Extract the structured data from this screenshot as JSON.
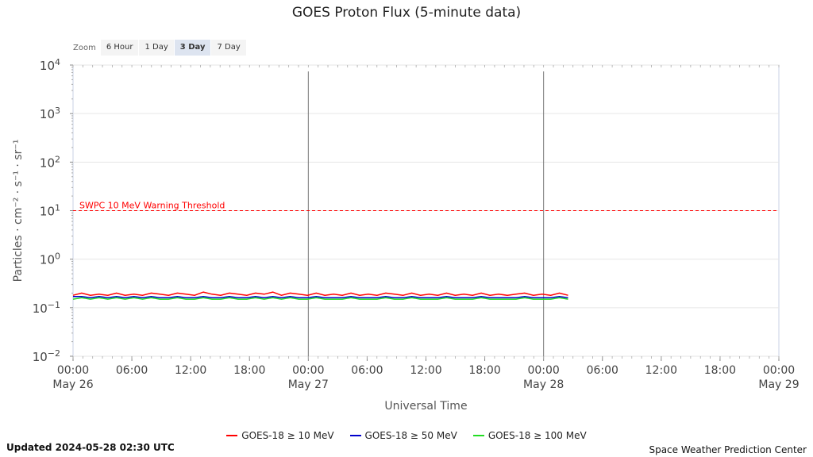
{
  "title": "GOES Proton Flux (5-minute data)",
  "zoom": {
    "label": "Zoom",
    "options": [
      "6 Hour",
      "1 Day",
      "3 Day",
      "7 Day"
    ],
    "active": "3 Day"
  },
  "footer": {
    "updated": "Updated 2024-05-28 02:30 UTC",
    "credit": "Space Weather Prediction Center"
  },
  "chart_data": {
    "type": "line",
    "title": "GOES Proton Flux (5-minute data)",
    "xlabel": "Universal Time",
    "ylabel": "Particles · cm⁻² · s⁻¹ · sr⁻¹",
    "y_scale": "log",
    "ylim": [
      0.01,
      10000
    ],
    "xlim_hours": [
      0,
      72
    ],
    "x_ticks": [
      {
        "time": "00:00",
        "date": "May 26"
      },
      {
        "time": "06:00",
        "date": ""
      },
      {
        "time": "12:00",
        "date": ""
      },
      {
        "time": "18:00",
        "date": ""
      },
      {
        "time": "00:00",
        "date": "May 27"
      },
      {
        "time": "06:00",
        "date": ""
      },
      {
        "time": "12:00",
        "date": ""
      },
      {
        "time": "18:00",
        "date": ""
      },
      {
        "time": "00:00",
        "date": "May 28"
      },
      {
        "time": "06:00",
        "date": ""
      },
      {
        "time": "12:00",
        "date": ""
      },
      {
        "time": "18:00",
        "date": ""
      },
      {
        "time": "00:00",
        "date": "May 29"
      }
    ],
    "y_ticks": [
      {
        "base": "10",
        "exp": "4"
      },
      {
        "base": "10",
        "exp": "3"
      },
      {
        "base": "10",
        "exp": "2"
      },
      {
        "base": "10",
        "exp": "1"
      },
      {
        "base": "10",
        "exp": "0"
      },
      {
        "base": "10",
        "exp": "−1"
      },
      {
        "base": "10",
        "exp": "−2"
      }
    ],
    "grid": true,
    "day_dividers": [
      "May 27",
      "May 28"
    ],
    "threshold": {
      "label": "SWPC 10 MeV Warning Threshold",
      "value": 10,
      "color": "#ff0000"
    },
    "series": [
      {
        "name": "GOES-18 ≥ 10 MeV",
        "color": "#ff0000",
        "x_start": "May 26 00:00",
        "x_end": "May 28 02:30",
        "values": [
          0.18,
          0.2,
          0.18,
          0.19,
          0.18,
          0.2,
          0.18,
          0.19,
          0.18,
          0.2,
          0.19,
          0.18,
          0.2,
          0.19,
          0.18,
          0.21,
          0.19,
          0.18,
          0.2,
          0.19,
          0.18,
          0.2,
          0.19,
          0.21,
          0.18,
          0.2,
          0.19,
          0.18,
          0.2,
          0.18,
          0.19,
          0.18,
          0.2,
          0.18,
          0.19,
          0.18,
          0.2,
          0.19,
          0.18,
          0.2,
          0.18,
          0.19,
          0.18,
          0.2,
          0.18,
          0.19,
          0.18,
          0.2,
          0.18,
          0.19,
          0.18,
          0.19,
          0.2,
          0.18,
          0.19,
          0.18,
          0.2,
          0.18
        ]
      },
      {
        "name": "GOES-18 ≥ 50 MeV",
        "color": "#0000cc",
        "x_start": "May 26 00:00",
        "x_end": "May 28 02:30",
        "values": [
          0.17,
          0.17,
          0.16,
          0.17,
          0.16,
          0.17,
          0.16,
          0.17,
          0.16,
          0.17,
          0.16,
          0.16,
          0.17,
          0.16,
          0.16,
          0.17,
          0.16,
          0.16,
          0.17,
          0.16,
          0.16,
          0.17,
          0.16,
          0.17,
          0.16,
          0.17,
          0.16,
          0.16,
          0.17,
          0.16,
          0.16,
          0.16,
          0.17,
          0.16,
          0.16,
          0.16,
          0.17,
          0.16,
          0.16,
          0.17,
          0.16,
          0.16,
          0.16,
          0.17,
          0.16,
          0.16,
          0.16,
          0.17,
          0.16,
          0.16,
          0.16,
          0.16,
          0.17,
          0.16,
          0.16,
          0.16,
          0.17,
          0.16
        ]
      },
      {
        "name": "GOES-18 ≥ 100 MeV",
        "color": "#22dd22",
        "x_start": "May 26 00:00",
        "x_end": "May 28 02:30",
        "values": [
          0.15,
          0.16,
          0.15,
          0.16,
          0.15,
          0.16,
          0.15,
          0.16,
          0.15,
          0.16,
          0.15,
          0.15,
          0.16,
          0.15,
          0.15,
          0.16,
          0.15,
          0.15,
          0.16,
          0.15,
          0.15,
          0.16,
          0.15,
          0.16,
          0.15,
          0.16,
          0.15,
          0.15,
          0.16,
          0.15,
          0.15,
          0.15,
          0.16,
          0.15,
          0.15,
          0.15,
          0.16,
          0.15,
          0.15,
          0.16,
          0.15,
          0.15,
          0.15,
          0.16,
          0.15,
          0.15,
          0.15,
          0.16,
          0.15,
          0.15,
          0.15,
          0.15,
          0.16,
          0.15,
          0.15,
          0.15,
          0.16,
          0.15
        ]
      }
    ]
  }
}
